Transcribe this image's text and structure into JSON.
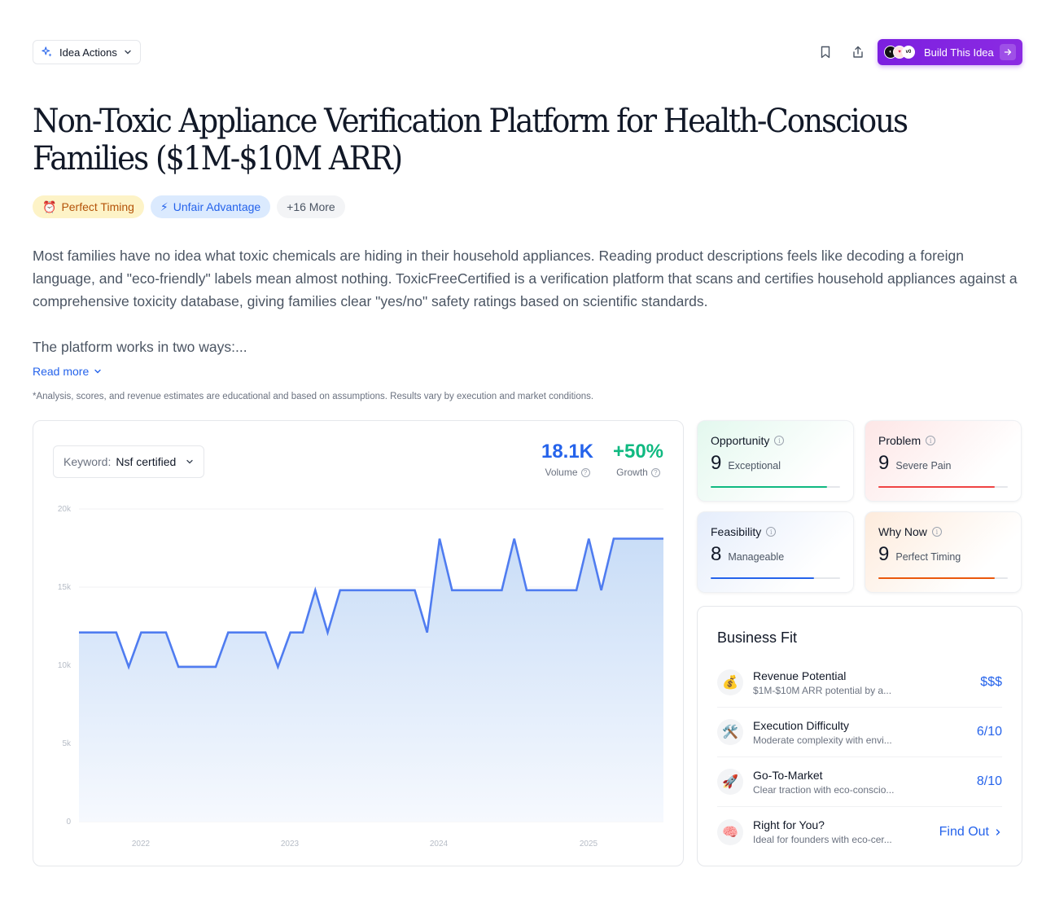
{
  "toolbar": {
    "actions_label": "Idea Actions",
    "build_label": "Build This Idea"
  },
  "idea": {
    "title": "Non-Toxic Appliance Verification Platform for Health-Conscious Families ($1M-$10M ARR)",
    "tags": [
      {
        "icon": "⏰",
        "label": "Perfect Timing"
      },
      {
        "icon": "⚡",
        "label": "Unfair Advantage"
      },
      {
        "label": "+16 More"
      }
    ],
    "description": [
      "Most families have no idea what toxic chemicals are hiding in their household appliances. Reading product descriptions feels like decoding a foreign language, and \"eco-friendly\" labels mean almost nothing. ToxicFreeCertified is a verification platform that scans and certifies household appliances against a comprehensive toxicity database, giving families clear \"yes/no\" safety ratings based on scientific standards.",
      "The platform works in two ways:..."
    ],
    "read_more": "Read more",
    "disclaimer": "*Analysis, scores, and revenue estimates are educational and based on assumptions. Results vary by execution and market conditions."
  },
  "trend": {
    "keyword_label": "Keyword:",
    "keyword_value": "Nsf certified",
    "volume_value": "18.1K",
    "volume_label": "Volume",
    "growth_value": "+50%",
    "growth_label": "Growth"
  },
  "chart_data": {
    "type": "area",
    "y_ticks": [
      "20k",
      "15k",
      "10k",
      "5k",
      "0"
    ],
    "ylim": [
      0,
      20000
    ],
    "x_ticks": [
      "2022",
      "2023",
      "2024",
      "2025"
    ],
    "colors": {
      "line": "#4f7cf0",
      "fill_top": "#c9ddf7",
      "fill_bottom": "#f6f9fe"
    },
    "values": [
      12100,
      12100,
      12100,
      12100,
      9900,
      12100,
      12100,
      12100,
      9900,
      9900,
      9900,
      9900,
      12100,
      12100,
      12100,
      12100,
      9900,
      12100,
      12100,
      14800,
      12100,
      14800,
      14800,
      14800,
      14800,
      14800,
      14800,
      14800,
      12100,
      18100,
      14800,
      14800,
      14800,
      14800,
      14800,
      18100,
      14800,
      14800,
      14800,
      14800,
      14800,
      18100,
      14800,
      18100,
      18100,
      18100,
      18100,
      18100
    ]
  },
  "scores": [
    {
      "title": "Opportunity",
      "value": "9",
      "desc": "Exceptional",
      "fill": 0.9,
      "color": "#10b981",
      "bg": "linear-gradient(135deg,#e3f8ee 0%,#ffffff 75%)"
    },
    {
      "title": "Problem",
      "value": "9",
      "desc": "Severe Pain",
      "fill": 0.9,
      "color": "#ef4444",
      "bg": "linear-gradient(135deg,#fde6e6 0%,#ffffff 75%)"
    },
    {
      "title": "Feasibility",
      "value": "8",
      "desc": "Manageable",
      "fill": 0.8,
      "color": "#2563eb",
      "bg": "linear-gradient(135deg,#e5edfb 0%,#ffffff 75%)"
    },
    {
      "title": "Why Now",
      "value": "9",
      "desc": "Perfect Timing",
      "fill": 0.9,
      "color": "#ea580c",
      "bg": "linear-gradient(135deg,#fdebdc 0%,#ffffff 75%)"
    }
  ],
  "business_fit": {
    "title": "Business Fit",
    "rows": [
      {
        "icon": "💰",
        "title": "Revenue Potential",
        "sub": "$1M-$10M ARR potential by a...",
        "value": "$$$"
      },
      {
        "icon": "🛠️",
        "title": "Execution Difficulty",
        "sub": "Moderate complexity with envi...",
        "value": "6/10"
      },
      {
        "icon": "🚀",
        "title": "Go-To-Market",
        "sub": "Clear traction with eco-conscio...",
        "value": "8/10"
      },
      {
        "icon": "🧠",
        "title": "Right for You?",
        "sub": "Ideal for founders with eco-cer...",
        "value": "Find Out"
      }
    ]
  }
}
